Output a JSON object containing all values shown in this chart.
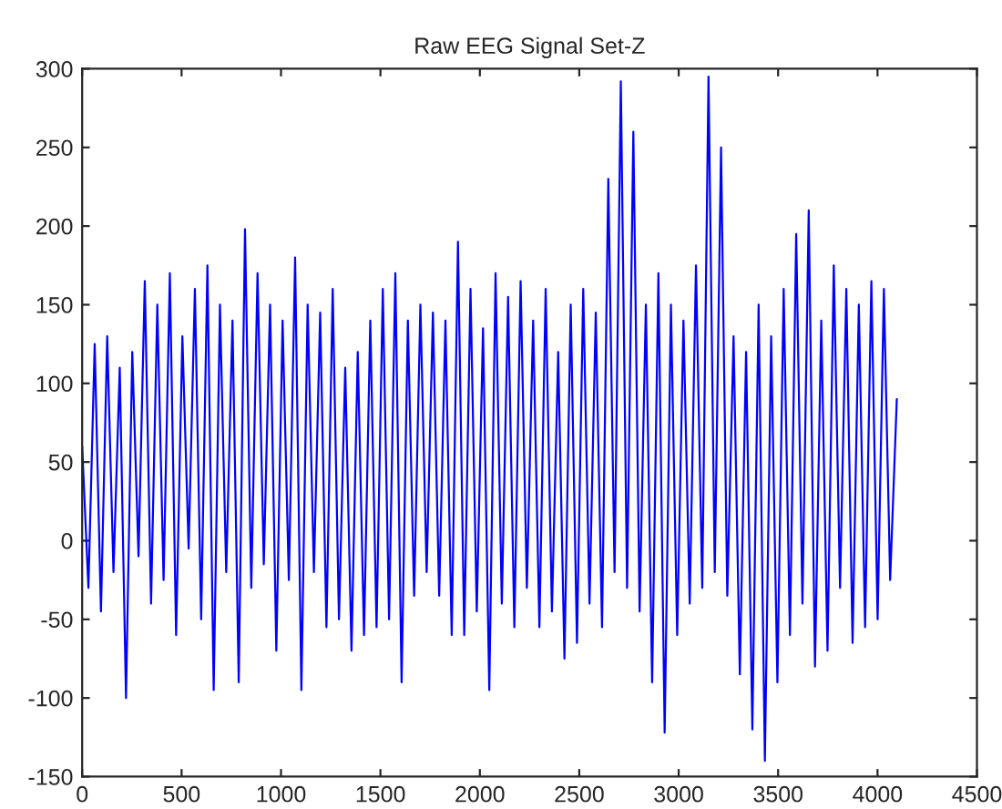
{
  "chart_data": {
    "type": "line",
    "title": "Raw EEG Signal Set-Z",
    "x": [
      0,
      31.5,
      63,
      94.5,
      126,
      157.5,
      189,
      220.5,
      252,
      283.5,
      315,
      346.5,
      378,
      409.5,
      441,
      472.5,
      504,
      535.5,
      567,
      598.5,
      630,
      661.5,
      693,
      724.5,
      756,
      787.5,
      819,
      850.5,
      882,
      913.5,
      945,
      976.5,
      1008,
      1039.5,
      1071,
      1102.5,
      1134,
      1165.5,
      1197,
      1228.5,
      1260,
      1291.5,
      1323,
      1354.5,
      1386,
      1417.5,
      1449,
      1480.5,
      1512,
      1543.5,
      1575,
      1606.5,
      1638,
      1669.5,
      1701,
      1732.5,
      1764,
      1795.5,
      1827,
      1858.5,
      1890,
      1921.5,
      1953,
      1984.5,
      2016,
      2047.5,
      2079,
      2110.5,
      2142,
      2173.5,
      2205,
      2236.5,
      2268,
      2299.5,
      2331,
      2362.5,
      2394,
      2425.5,
      2457,
      2488.5,
      2520,
      2551.5,
      2583,
      2614.5,
      2646,
      2677.5,
      2709,
      2740.5,
      2772,
      2803.5,
      2835,
      2866.5,
      2898,
      2929.5,
      2961,
      2992.5,
      3024,
      3055.5,
      3087,
      3118.5,
      3150,
      3181.5,
      3213,
      3244.5,
      3276,
      3307.5,
      3339,
      3370.5,
      3402,
      3433.5,
      3465,
      3496.5,
      3528,
      3559.5,
      3591,
      3622.5,
      3654,
      3685.5,
      3717,
      3748.5,
      3780,
      3811.5,
      3843,
      3874.5,
      3906,
      3937.5,
      3969,
      4000.5,
      4032,
      4063.5,
      4097
    ],
    "series": [
      {
        "color": "#0000ff",
        "values": [
          60,
          -30,
          125,
          -45,
          130,
          -20,
          110,
          -100,
          120,
          -10,
          165,
          -40,
          150,
          -25,
          170,
          -60,
          130,
          -5,
          160,
          -50,
          175,
          -95,
          150,
          -20,
          140,
          -90,
          198,
          -30,
          170,
          -15,
          150,
          -70,
          140,
          -25,
          180,
          -95,
          150,
          -20,
          145,
          -55,
          160,
          -50,
          110,
          -70,
          120,
          -60,
          140,
          -55,
          160,
          -50,
          170,
          -90,
          140,
          -35,
          150,
          -20,
          145,
          -35,
          140,
          -60,
          190,
          -60,
          160,
          -45,
          135,
          -95,
          170,
          -40,
          155,
          -55,
          165,
          -30,
          140,
          -55,
          160,
          -45,
          120,
          -75,
          150,
          -65,
          160,
          -40,
          145,
          -55,
          230,
          -20,
          292,
          -30,
          260,
          -45,
          150,
          -90,
          170,
          -122,
          150,
          -60,
          140,
          -40,
          175,
          -30,
          295,
          -20,
          250,
          -35,
          130,
          -85,
          120,
          -120,
          150,
          -140,
          130,
          -90,
          160,
          -60,
          195,
          -40,
          210,
          -80,
          140,
          -70,
          175,
          -30,
          160,
          -65,
          150,
          -55,
          165,
          -50,
          160,
          -25,
          90
        ]
      }
    ],
    "xlim": [
      0,
      4500
    ],
    "ylim": [
      -150,
      300
    ],
    "xticks": [
      0,
      500,
      1000,
      1500,
      2000,
      2500,
      3000,
      3500,
      4000,
      4500
    ],
    "yticks": [
      -150,
      -100,
      -50,
      0,
      50,
      100,
      150,
      200,
      250,
      300
    ],
    "grid": false,
    "line_style": "solid",
    "marker": "none"
  }
}
